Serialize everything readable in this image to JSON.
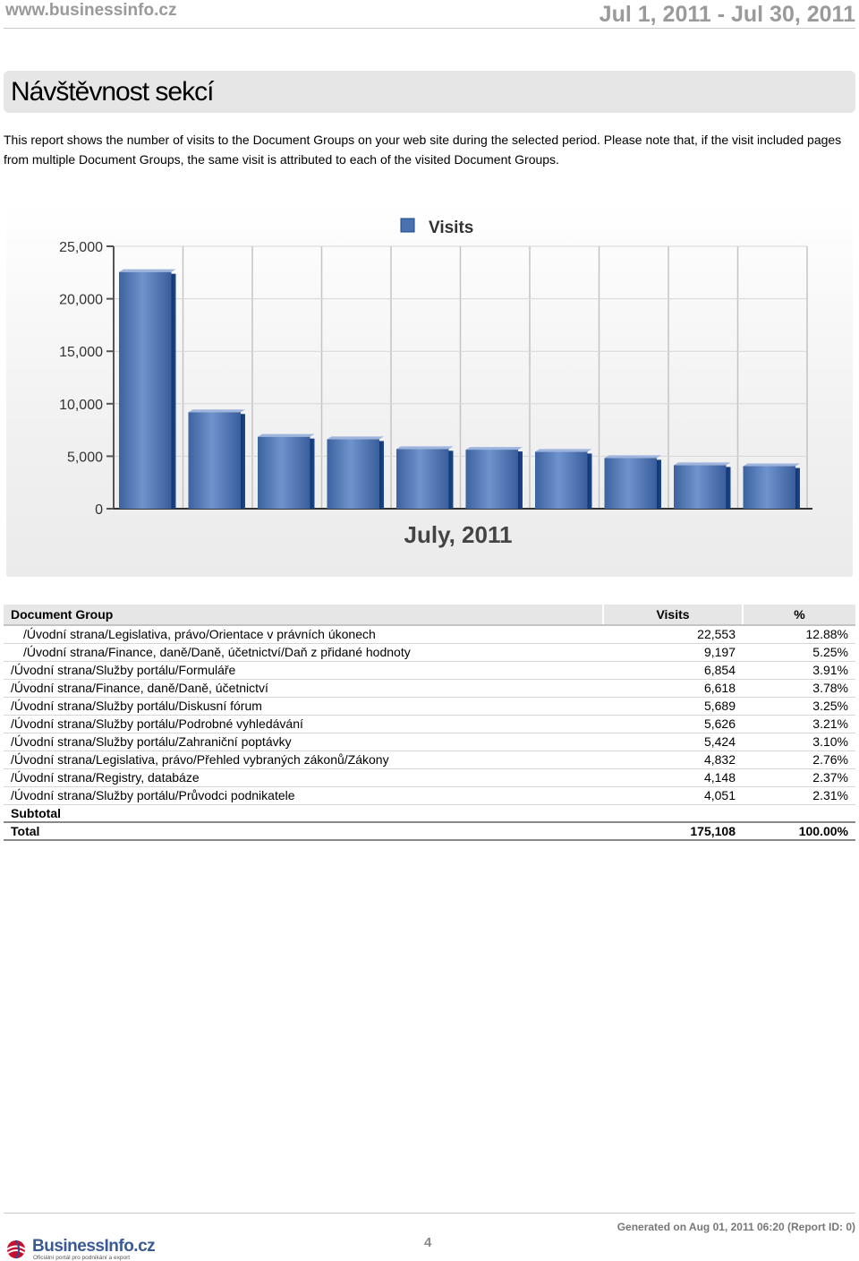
{
  "header": {
    "site_url": "www.businessinfo.cz",
    "date_range": "Jul 1, 2011 - Jul 30, 2011"
  },
  "page": {
    "title": "Návštěvnost sekcí",
    "description": "This report shows the number of visits to the Document Groups on your web site during the selected period. Please note that, if the visit included pages from multiple Document Groups, the same visit is attributed to each of the visited Document Groups."
  },
  "chart_data": {
    "type": "bar",
    "title": "",
    "legend": [
      "Visits"
    ],
    "legend_position": "top-center",
    "xlabel": "July, 2011",
    "ylabel": "",
    "ylim": [
      0,
      25000
    ],
    "yticks": [
      "0",
      "5,000",
      "10,000",
      "15,000",
      "20,000",
      "25,000"
    ],
    "grid": true,
    "series": [
      {
        "name": "Visits",
        "values": [
          22553,
          9197,
          6854,
          6618,
          5689,
          5626,
          5424,
          4832,
          4148,
          4051
        ],
        "color": "#4a72b0"
      }
    ]
  },
  "table": {
    "headers": {
      "group": "Document Group",
      "visits": "Visits",
      "pct": "%"
    },
    "rows": [
      {
        "group": "/Úvodní strana/Legislativa, právo/Orientace v právních úkonech",
        "visits": "22,553",
        "pct": "12.88%",
        "indent": true
      },
      {
        "group": "/Úvodní strana/Finance, daně/Daně, účetnictví/Daň z přidané hodnoty",
        "visits": "9,197",
        "pct": "5.25%",
        "indent": true
      },
      {
        "group": "/Úvodní strana/Služby portálu/Formuláře",
        "visits": "6,854",
        "pct": "3.91%",
        "indent": false
      },
      {
        "group": "/Úvodní strana/Finance, daně/Daně, účetnictví",
        "visits": "6,618",
        "pct": "3.78%",
        "indent": false
      },
      {
        "group": "/Úvodní strana/Služby portálu/Diskusní fórum",
        "visits": "5,689",
        "pct": "3.25%",
        "indent": false
      },
      {
        "group": "/Úvodní strana/Služby portálu/Podrobné vyhledávání",
        "visits": "5,626",
        "pct": "3.21%",
        "indent": false
      },
      {
        "group": "/Úvodní strana/Služby portálu/Zahraniční poptávky",
        "visits": "5,424",
        "pct": "3.10%",
        "indent": false
      },
      {
        "group": "/Úvodní strana/Legislativa, právo/Přehled vybraných zákonů/Zákony",
        "visits": "4,832",
        "pct": "2.76%",
        "indent": false
      },
      {
        "group": "/Úvodní strana/Registry, databáze",
        "visits": "4,148",
        "pct": "2.37%",
        "indent": false
      },
      {
        "group": "/Úvodní strana/Služby portálu/Průvodci podnikatele",
        "visits": "4,051",
        "pct": "2.31%",
        "indent": false
      }
    ],
    "subtotal_label": "Subtotal",
    "total_label": "Total",
    "total_visits": "175,108",
    "total_pct": "100.00%"
  },
  "footer": {
    "page_number": "4",
    "generated": "Generated on Aug 01, 2011 06:20 (Report ID: 0)",
    "logo_text": "BusinessInfo.cz",
    "logo_sub": "Oficiální portál pro podnikání a export"
  }
}
